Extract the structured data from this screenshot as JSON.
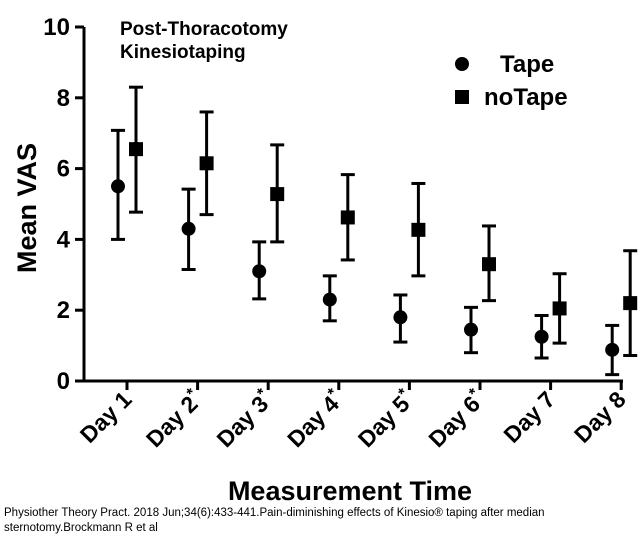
{
  "chart_data": {
    "type": "scatter",
    "title": "Post-Thoracotomy\nKinesiotaping",
    "xlabel": "Measurement Time",
    "ylabel": "Mean VAS",
    "ylim": [
      0,
      10
    ],
    "yticks": [
      0,
      2,
      4,
      6,
      8,
      10
    ],
    "grid": false,
    "legend": "top-right",
    "categories": [
      {
        "label": "Day 1",
        "mark": ""
      },
      {
        "label": "Day 2",
        "mark": "*"
      },
      {
        "label": "Day 3",
        "mark": "*"
      },
      {
        "label": "Day 4",
        "mark": "*"
      },
      {
        "label": "Day 5",
        "mark": "*"
      },
      {
        "label": "Day 6",
        "mark": "*"
      },
      {
        "label": "Day 7",
        "mark": ""
      },
      {
        "label": "Day 8",
        "mark": ""
      }
    ],
    "series": [
      {
        "name": "Tape",
        "marker": "circle",
        "values": [
          5.5,
          4.3,
          3.1,
          2.3,
          1.8,
          1.45,
          1.25,
          0.88
        ],
        "error_low": [
          4.0,
          3.15,
          2.32,
          1.7,
          1.1,
          0.8,
          0.65,
          0.18
        ],
        "error_high": [
          7.08,
          5.42,
          3.93,
          2.97,
          2.43,
          2.08,
          1.85,
          1.57
        ]
      },
      {
        "name": "noTape",
        "marker": "square",
        "values": [
          6.55,
          6.15,
          5.28,
          4.62,
          4.27,
          3.3,
          2.05,
          2.2
        ],
        "error_low": [
          4.77,
          4.7,
          3.93,
          3.42,
          2.97,
          2.27,
          1.07,
          0.72
        ],
        "error_high": [
          8.3,
          7.6,
          6.67,
          5.83,
          5.58,
          4.38,
          3.03,
          3.68
        ]
      }
    ]
  },
  "caption": "Physiother Theory Pract. 2018 Jun;34(6):433-441.Pain-diminishing effects of Kinesio® taping after median sternotomy.Brockmann R et al"
}
